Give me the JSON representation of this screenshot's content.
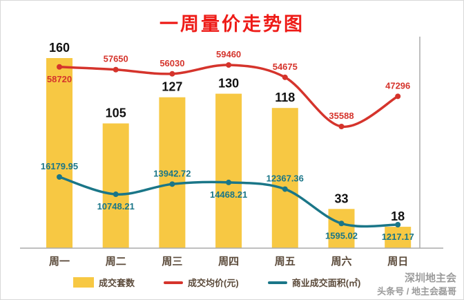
{
  "chart_data": {
    "type": "bar",
    "title": "一周量价走势图",
    "categories": [
      "周一",
      "周二",
      "周三",
      "周四",
      "周五",
      "周六",
      "周日"
    ],
    "series": [
      {
        "name": "成交套数",
        "type": "bar",
        "color": "#F7C843",
        "values": [
          160,
          105,
          127,
          130,
          118,
          33,
          18
        ]
      },
      {
        "name": "成交均价(元)",
        "type": "line",
        "color": "#D5342C",
        "values": [
          58720,
          57650,
          56030,
          59460,
          54675,
          35588,
          47296
        ]
      },
      {
        "name": "商业成交面积(㎡)",
        "type": "line",
        "color": "#1A7688",
        "values": [
          16179.95,
          10748.21,
          13942.72,
          14468.21,
          12367.36,
          1595.02,
          1217.17
        ]
      }
    ],
    "layout": {
      "legend_position": "bottom",
      "grid": false,
      "price_label_side": [
        "below",
        "above",
        "above",
        "above",
        "above",
        "above",
        "above"
      ],
      "area_label_side": [
        "above",
        "below",
        "above",
        "below",
        "above",
        "below",
        "below"
      ]
    }
  },
  "watermark": {
    "line1": "深圳地主会",
    "line2": "头条号 / 地主会磊哥"
  }
}
